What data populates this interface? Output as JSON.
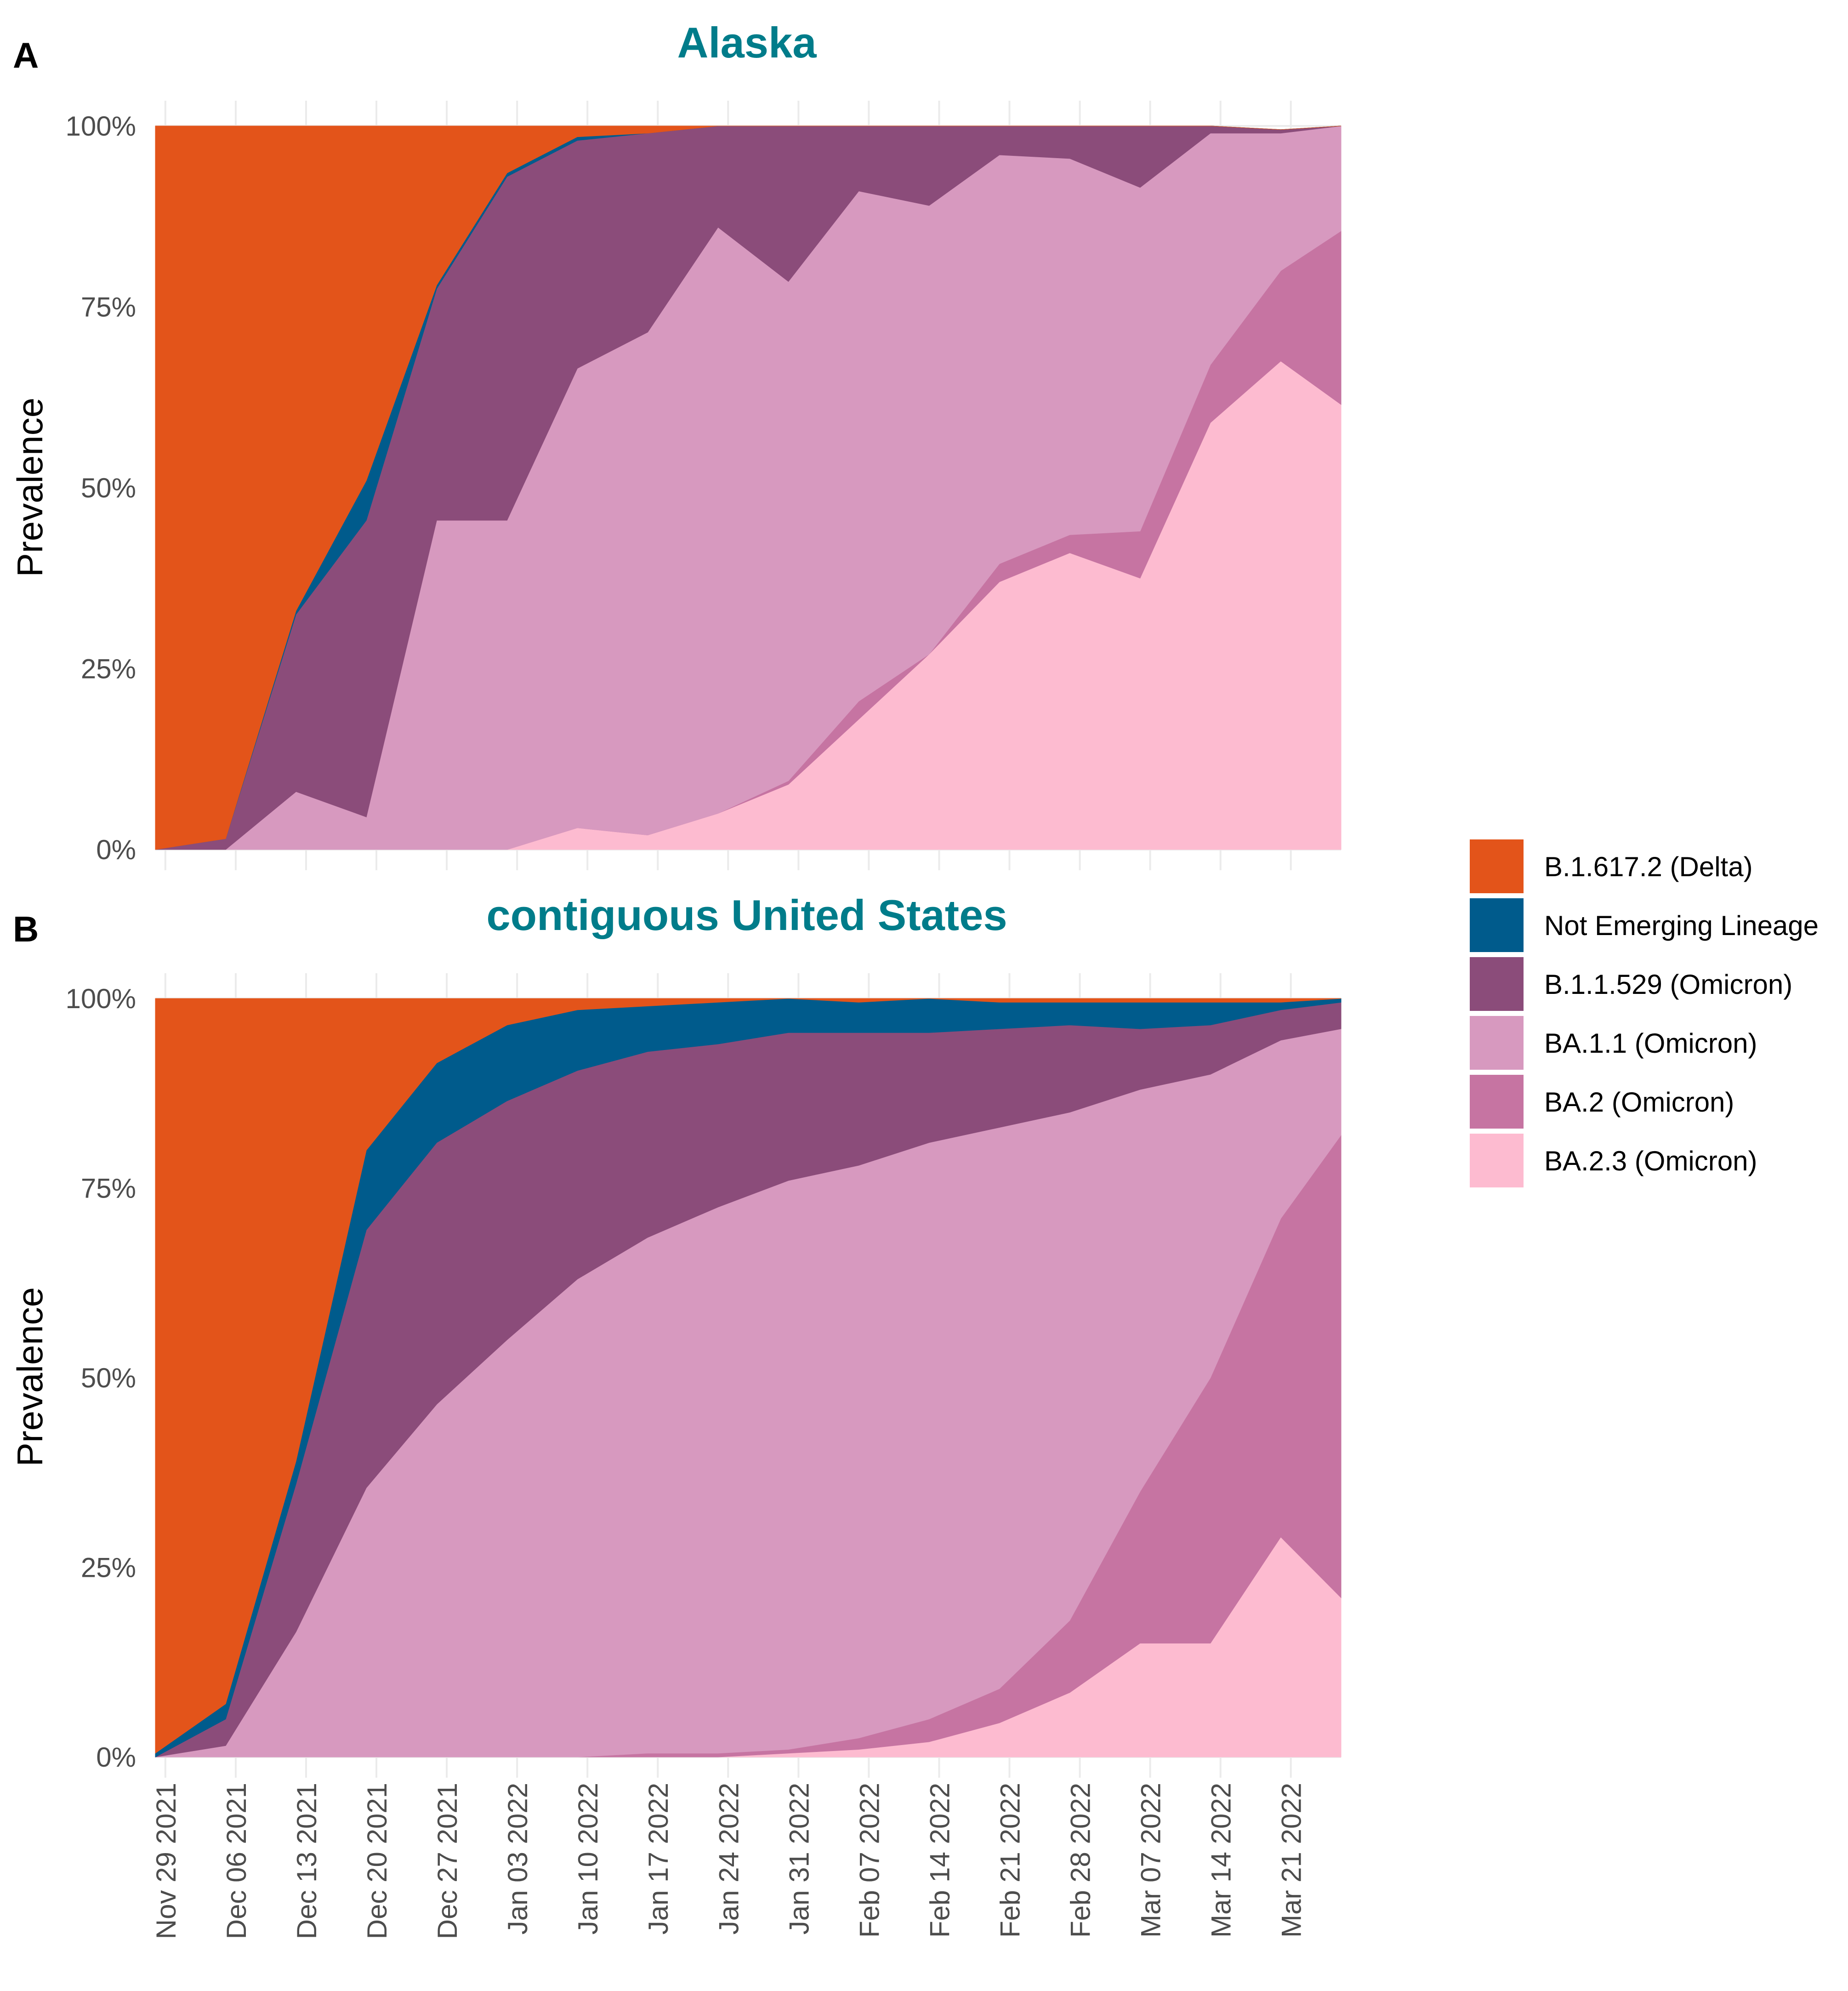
{
  "panels": [
    {
      "letter": "A",
      "title": "Alaska"
    },
    {
      "letter": "B",
      "title": "contiguous United States"
    }
  ],
  "legend": [
    {
      "label": "B.1.617.2 (Delta)",
      "color": "#e3541a"
    },
    {
      "label": "Not Emerging Lineage",
      "color": "#005b8c"
    },
    {
      "label": "B.1.1.529 (Omicron)",
      "color": "#8b4c7a"
    },
    {
      "label": "BA.1.1 (Omicron)",
      "color": "#d799bf"
    },
    {
      "label": "BA.2 (Omicron)",
      "color": "#c674a2"
    },
    {
      "label": "BA.2.3 (Omicron)",
      "color": "#fdbbd0"
    }
  ],
  "chart_data": [
    {
      "type": "area",
      "title": "Alaska",
      "ylabel": "Prevalence",
      "xlabel": "",
      "ylim": [
        0,
        100
      ],
      "yticks": [
        "0%",
        "25%",
        "50%",
        "75%",
        "100%"
      ],
      "tick_labels": [
        "Nov 29 2021",
        "Dec 06 2021",
        "Dec 13 2021",
        "Dec 20 2021",
        "Dec 27 2021",
        "Jan 03 2022",
        "Jan 10 2022",
        "Jan 17 2022",
        "Jan 24 2022",
        "Jan 31 2022",
        "Feb 07 2022",
        "Feb 14 2022",
        "Feb 21 2022",
        "Feb 28 2022",
        "Mar 07 2022",
        "Mar 14 2022",
        "Mar 21 2022"
      ],
      "x": [
        -1,
        6,
        13,
        20,
        27,
        34,
        41,
        48,
        55,
        62,
        69,
        76,
        83,
        90,
        97,
        104,
        111,
        117
      ],
      "series": [
        {
          "name": "BA.2.3 (Omicron)",
          "values": [
            0,
            0,
            0,
            0,
            0,
            0,
            3,
            2,
            5,
            9,
            18,
            27,
            37,
            41,
            37.5,
            59,
            67.5,
            61.5
          ]
        },
        {
          "name": "BA.2 (Omicron)",
          "values": [
            0,
            0,
            0,
            0,
            0,
            0,
            0,
            0,
            0,
            0.5,
            2.5,
            0,
            2.5,
            2.5,
            6.5,
            8,
            12.5,
            24
          ]
        },
        {
          "name": "BA.1.1 (Omicron)",
          "values": [
            0,
            0,
            8,
            4.5,
            45.5,
            45.5,
            63.5,
            69.5,
            81,
            69,
            70.5,
            62,
            56.5,
            52,
            47.5,
            32,
            19,
            14.5
          ]
        },
        {
          "name": "B.1.1.529 (Omicron)",
          "values": [
            0,
            1.5,
            24.5,
            41,
            32,
            47.5,
            31.5,
            27.5,
            14,
            21.5,
            9,
            11,
            4,
            4.5,
            8.5,
            1,
            0.5,
            0
          ]
        },
        {
          "name": "Not Emerging Lineage",
          "values": [
            0,
            0,
            0.5,
            5.5,
            0.5,
            0.5,
            0.5,
            0,
            0,
            0,
            0,
            0,
            0,
            0,
            0,
            0,
            0,
            0
          ]
        },
        {
          "name": "B.1.617.2 (Delta)",
          "values": [
            100,
            98.5,
            67,
            49,
            22,
            6.5,
            1.5,
            1,
            0,
            0,
            0,
            0,
            0,
            0,
            0,
            0,
            0,
            0
          ]
        }
      ]
    },
    {
      "type": "area",
      "title": "contiguous United States",
      "ylabel": "Prevalence",
      "xlabel": "",
      "ylim": [
        0,
        100
      ],
      "yticks": [
        "0%",
        "25%",
        "50%",
        "75%",
        "100%"
      ],
      "tick_labels": [
        "Nov 29 2021",
        "Dec 06 2021",
        "Dec 13 2021",
        "Dec 20 2021",
        "Dec 27 2021",
        "Jan 03 2022",
        "Jan 10 2022",
        "Jan 17 2022",
        "Jan 24 2022",
        "Jan 31 2022",
        "Feb 07 2022",
        "Feb 14 2022",
        "Feb 21 2022",
        "Feb 28 2022",
        "Mar 07 2022",
        "Mar 14 2022",
        "Mar 21 2022"
      ],
      "x": [
        -1,
        6,
        13,
        20,
        27,
        34,
        41,
        48,
        55,
        62,
        69,
        76,
        83,
        90,
        97,
        104,
        111,
        117
      ],
      "series": [
        {
          "name": "BA.2.3 (Omicron)",
          "values": [
            0,
            0,
            0,
            0,
            0,
            0,
            0,
            0,
            0,
            0.5,
            1,
            2,
            4.5,
            8.5,
            15,
            15,
            29,
            21
          ]
        },
        {
          "name": "BA.2 (Omicron)",
          "values": [
            0,
            0,
            0,
            0,
            0,
            0,
            0,
            0.5,
            0.5,
            0.5,
            1.5,
            3,
            4.5,
            9.5,
            20,
            35,
            42,
            61
          ]
        },
        {
          "name": "BA.1.1 (Omicron)",
          "values": [
            0,
            1.5,
            16.5,
            35.5,
            46.5,
            55,
            63,
            68,
            72,
            75,
            75.5,
            76,
            74,
            67,
            53,
            40,
            23.5,
            14
          ]
        },
        {
          "name": "B.1.1.529 (Omicron)",
          "values": [
            0,
            3.5,
            19.5,
            34,
            34.5,
            31.5,
            27.5,
            24.5,
            21.5,
            19.5,
            17.5,
            14.5,
            13,
            11.5,
            8,
            6.5,
            4,
            3.5
          ]
        },
        {
          "name": "Not Emerging Lineage",
          "values": [
            0.5,
            2,
            3,
            10.5,
            10.5,
            10,
            8,
            6,
            5.5,
            4.5,
            4,
            4.5,
            3.5,
            3,
            3.5,
            3,
            1,
            0.5
          ]
        },
        {
          "name": "B.1.617.2 (Delta)",
          "values": [
            99.5,
            93,
            61,
            20,
            8.5,
            3.5,
            1.5,
            1,
            0.5,
            0,
            0.5,
            0,
            0.5,
            0.5,
            0.5,
            0.5,
            0.5,
            0
          ]
        }
      ]
    }
  ]
}
